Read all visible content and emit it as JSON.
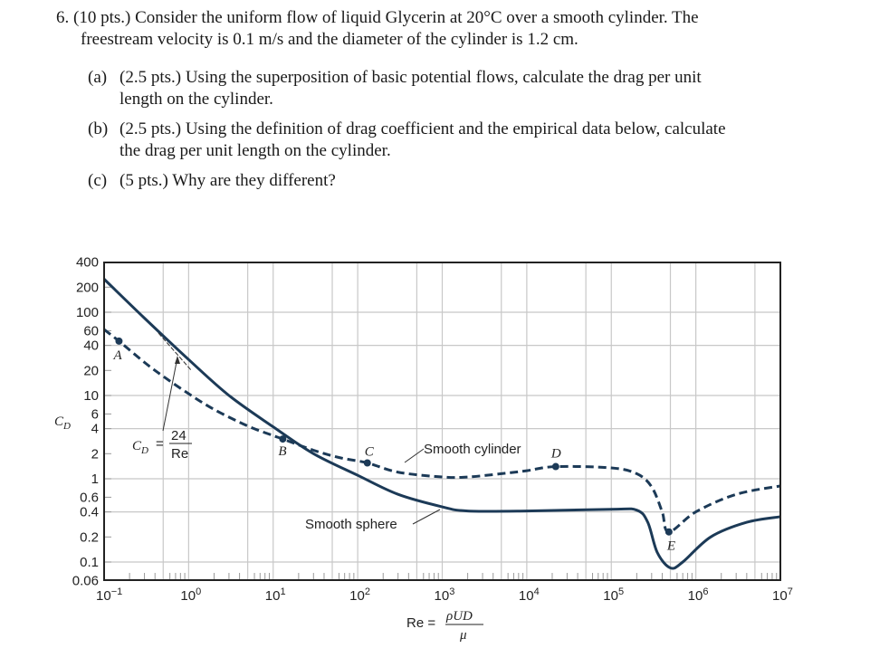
{
  "problem": {
    "line1": "6. (10 pts.) Consider the uniform flow of liquid Glycerin at 20°C over a smooth cylinder. The",
    "line2": "freestream velocity is 0.1 m/s and the diameter of the cylinder is 1.2 cm.",
    "parts": [
      {
        "label": "(a)",
        "line1": "(2.5 pts.) Using the superposition of basic potential flows, calculate the drag per unit",
        "line2": "length on the cylinder."
      },
      {
        "label": "(b)",
        "line1": "(2.5 pts.) Using the definition of drag coefficient and the empirical data below, calculate",
        "line2": "the drag per unit length on the cylinder."
      },
      {
        "label": "(c)",
        "line1": "(5 pts.) Why are they different?",
        "line2": ""
      }
    ]
  },
  "chart_data": {
    "type": "line",
    "xscale": "log",
    "yscale": "log",
    "xlim": [
      0.1,
      10000000
    ],
    "ylim": [
      0.06,
      400
    ],
    "xlabel": "Re = ρUD/μ",
    "ylabel": "C_D",
    "xticks": [
      {
        "v": 0.1,
        "l": "10",
        "e": "−1"
      },
      {
        "v": 1,
        "l": "10",
        "e": "0"
      },
      {
        "v": 10,
        "l": "10",
        "e": "1"
      },
      {
        "v": 100,
        "l": "10",
        "e": "2"
      },
      {
        "v": 1000,
        "l": "10",
        "e": "3"
      },
      {
        "v": 10000,
        "l": "10",
        "e": "4"
      },
      {
        "v": 100000,
        "l": "10",
        "e": "5"
      },
      {
        "v": 1000000,
        "l": "10",
        "e": "6"
      },
      {
        "v": 10000000,
        "l": "10",
        "e": "7"
      }
    ],
    "yticks": [
      "400",
      "200",
      "100",
      "60",
      "40",
      "20",
      "10",
      "6",
      "4",
      "2",
      "1",
      "0.6",
      "0.4",
      "0.2",
      "0.1",
      "0.06"
    ],
    "grid": true,
    "series": [
      {
        "name": "Smooth cylinder",
        "style": "dashed",
        "points": [
          [
            0.1,
            62
          ],
          [
            0.15,
            45
          ],
          [
            0.3,
            25
          ],
          [
            0.5,
            17
          ],
          [
            1,
            10.5
          ],
          [
            2,
            6.8
          ],
          [
            5,
            4.3
          ],
          [
            10,
            3.3
          ],
          [
            13,
            3.0
          ],
          [
            30,
            2.2
          ],
          [
            60,
            1.8
          ],
          [
            130,
            1.55
          ],
          [
            300,
            1.2
          ],
          [
            1000,
            1.05
          ],
          [
            2000,
            1.05
          ],
          [
            5000,
            1.15
          ],
          [
            10000,
            1.25
          ],
          [
            22000,
            1.4
          ],
          [
            100000,
            1.35
          ],
          [
            200000,
            1.15
          ],
          [
            300000,
            0.8
          ],
          [
            400000,
            0.4
          ],
          [
            480000,
            0.23
          ],
          [
            1000000,
            0.4
          ],
          [
            3000000,
            0.65
          ],
          [
            10000000,
            0.82
          ]
        ]
      },
      {
        "name": "Smooth sphere",
        "style": "solid",
        "points": [
          [
            0.1,
            250
          ],
          [
            0.3,
            85
          ],
          [
            1,
            27
          ],
          [
            3,
            10
          ],
          [
            10,
            4.2
          ],
          [
            30,
            2.0
          ],
          [
            100,
            1.1
          ],
          [
            300,
            0.65
          ],
          [
            1000,
            0.46
          ],
          [
            2000,
            0.41
          ],
          [
            10000,
            0.41
          ],
          [
            100000,
            0.43
          ],
          [
            200000,
            0.42
          ],
          [
            270000,
            0.3
          ],
          [
            350000,
            0.13
          ],
          [
            500000,
            0.085
          ],
          [
            700000,
            0.1
          ],
          [
            1500000,
            0.2
          ],
          [
            4000000,
            0.3
          ],
          [
            10000000,
            0.35
          ]
        ]
      }
    ],
    "points": [
      {
        "label": "A",
        "re": 0.15,
        "cd": 45
      },
      {
        "label": "B",
        "re": 13,
        "cd": 3.0
      },
      {
        "label": "C",
        "re": 130,
        "cd": 1.55
      },
      {
        "label": "D",
        "re": 22000,
        "cd": 1.4
      },
      {
        "label": "E",
        "re": 480000,
        "cd": 0.23
      }
    ],
    "annotations": {
      "cylinder": "Smooth cylinder",
      "sphere": "Smooth sphere",
      "stokes_lhs": "C",
      "stokes_sub": "D",
      "stokes_num": "24",
      "stokes_den": "Re",
      "ylabel_main": "C",
      "ylabel_sub": "D",
      "xlabel_lhs": "Re =",
      "xlabel_num": "ρUD",
      "xlabel_den": "μ"
    },
    "color": "#1c3a57"
  }
}
